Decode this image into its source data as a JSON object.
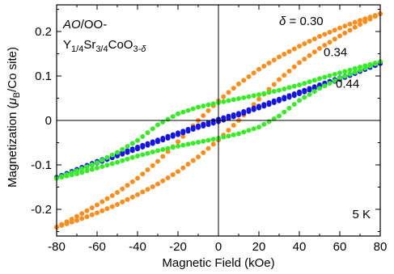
{
  "chart_data": {
    "type": "scatter",
    "title": "",
    "xlabel": "Magnetic Field (kOe)",
    "ylabel_parts": {
      "pre": "Magnetization (",
      "mu": "μ",
      "sub": "B",
      "post": "/Co site)"
    },
    "xlim": [
      -80,
      80
    ],
    "ylim": [
      -0.26,
      0.26
    ],
    "x_ticks": [
      -80,
      -60,
      -40,
      -20,
      0,
      20,
      40,
      60,
      80
    ],
    "x_tick_labels": [
      "-80",
      "-60",
      "-40",
      "-20",
      "0",
      "20",
      "40",
      "60",
      "80"
    ],
    "y_ticks": [
      -0.2,
      -0.1,
      0,
      0.1,
      0.2
    ],
    "y_tick_labels": [
      "-0.2",
      "-0.1",
      "0",
      "0.1",
      "0.2"
    ],
    "grid": false,
    "zero_lines": true,
    "sample_label": {
      "line1_italic": "AO",
      "line1_rest": "/OO-",
      "line2": [
        {
          "t": "Y",
          "s": "normal"
        },
        {
          "t": "1/4",
          "s": "sub"
        },
        {
          "t": "Sr",
          "s": "normal"
        },
        {
          "t": "3/4",
          "s": "sub"
        },
        {
          "t": "CoO",
          "s": "normal"
        },
        {
          "t": "3-",
          "s": "sub"
        },
        {
          "t": "δ",
          "s": "subitalic"
        }
      ]
    },
    "temperature_label": "5 K",
    "series": [
      {
        "name": "δ = 0.30",
        "label_italic": "δ",
        "label_rest": " = 0.30",
        "color": "#ff8c1a",
        "branches": [
          {
            "branch": "descending",
            "x": [
              80,
              70,
              60,
              50,
              40,
              30,
              20,
              10,
              0,
              -10,
              -20,
              -30,
              -40,
              -50,
              -60,
              -70,
              -80
            ],
            "y": [
              0.24,
              0.225,
              0.208,
              0.189,
              0.167,
              0.143,
              0.115,
              0.082,
              0.044,
              0.0,
              -0.048,
              -0.092,
              -0.13,
              -0.162,
              -0.19,
              -0.216,
              -0.24
            ]
          },
          {
            "branch": "ascending",
            "x": [
              -80,
              -70,
              -60,
              -50,
              -40,
              -30,
              -20,
              -10,
              0,
              10,
              20,
              30,
              40,
              50,
              60,
              70,
              80
            ],
            "y": [
              -0.24,
              -0.225,
              -0.208,
              -0.189,
              -0.167,
              -0.143,
              -0.115,
              -0.082,
              -0.044,
              0.0,
              0.048,
              0.092,
              0.13,
              0.162,
              0.19,
              0.216,
              0.24
            ]
          }
        ]
      },
      {
        "name": "0.34",
        "label_italic": "",
        "label_rest": "0.34",
        "color": "#1414e6",
        "branches": [
          {
            "branch": "descending",
            "x": [
              80,
              70,
              60,
              50,
              40,
              30,
              20,
              10,
              0,
              -10,
              -20,
              -30,
              -40,
              -50,
              -60,
              -70,
              -80
            ],
            "y": [
              0.128,
              0.112,
              0.096,
              0.08,
              0.064,
              0.048,
              0.032,
              0.016,
              0.003,
              -0.012,
              -0.028,
              -0.044,
              -0.06,
              -0.076,
              -0.092,
              -0.11,
              -0.128
            ]
          },
          {
            "branch": "ascending",
            "x": [
              -80,
              -70,
              -60,
              -50,
              -40,
              -30,
              -20,
              -10,
              0,
              10,
              20,
              30,
              40,
              50,
              60,
              70,
              80
            ],
            "y": [
              -0.128,
              -0.112,
              -0.096,
              -0.08,
              -0.064,
              -0.048,
              -0.032,
              -0.016,
              -0.003,
              0.012,
              0.028,
              0.044,
              0.06,
              0.076,
              0.092,
              0.11,
              0.128
            ]
          }
        ]
      },
      {
        "name": "0.44",
        "label_italic": "",
        "label_rest": "0.44",
        "color": "#33ee22",
        "branches": [
          {
            "branch": "descending",
            "x": [
              80,
              70,
              60,
              50,
              40,
              30,
              20,
              10,
              0,
              -10,
              -20,
              -30,
              -40,
              -50,
              -60,
              -70,
              -80
            ],
            "y": [
              0.132,
              0.12,
              0.107,
              0.094,
              0.08,
              0.068,
              0.058,
              0.049,
              0.04,
              0.03,
              0.015,
              -0.01,
              -0.045,
              -0.072,
              -0.095,
              -0.113,
              -0.13
            ]
          },
          {
            "branch": "ascending",
            "x": [
              -80,
              -70,
              -60,
              -50,
              -40,
              -30,
              -20,
              -10,
              0,
              10,
              20,
              30,
              40,
              50,
              60,
              70,
              80
            ],
            "y": [
              -0.13,
              -0.12,
              -0.107,
              -0.094,
              -0.08,
              -0.068,
              -0.058,
              -0.049,
              -0.04,
              -0.03,
              -0.015,
              0.01,
              0.045,
              0.072,
              0.095,
              0.113,
              0.132
            ]
          }
        ]
      }
    ]
  }
}
